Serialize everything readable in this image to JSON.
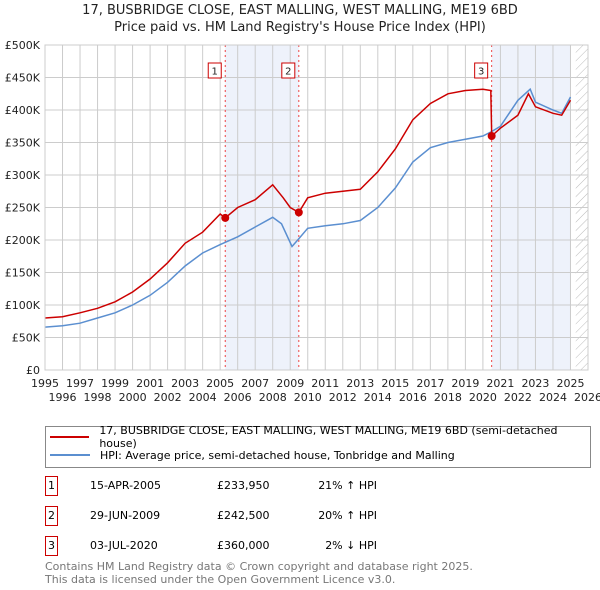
{
  "title": "17, BUSBRIDGE CLOSE, EAST MALLING, WEST MALLING, ME19 6BD",
  "subtitle": "Price paid vs. HM Land Registry's House Price Index (HPI)",
  "legend": {
    "property": "17, BUSBRIDGE CLOSE, EAST MALLING, WEST MALLING, ME19 6BD (semi-detached house)",
    "hpi": "HPI: Average price, semi-detached house, Tonbridge and Malling"
  },
  "colors": {
    "property": "#cc0000",
    "hpi": "#5b8fd0",
    "shade": "#eef2fb"
  },
  "transactions": [
    {
      "num": "1",
      "date": "15-APR-2005",
      "price": "£233,950",
      "hpi": "21% ↑ HPI"
    },
    {
      "num": "2",
      "date": "29-JUN-2009",
      "price": "£242,500",
      "hpi": "20% ↑ HPI"
    },
    {
      "num": "3",
      "date": "03-JUL-2020",
      "price": "£360,000",
      "hpi": "2% ↓ HPI"
    }
  ],
  "footer": {
    "line1": "Contains HM Land Registry data © Crown copyright and database right 2025.",
    "line2": "This data is licensed under the Open Government Licence v3.0."
  },
  "chart_data": {
    "type": "line",
    "xlim": [
      1995,
      2026
    ],
    "ylim": [
      0,
      500000
    ],
    "x_ticks": [
      "1995",
      "1996",
      "1997",
      "1998",
      "1999",
      "2000",
      "2001",
      "2002",
      "2003",
      "2004",
      "2005",
      "2006",
      "2007",
      "2008",
      "2009",
      "2010",
      "2011",
      "2012",
      "2013",
      "2014",
      "2015",
      "2016",
      "2017",
      "2018",
      "2019",
      "2020",
      "2021",
      "2022",
      "2023",
      "2024",
      "2025",
      "2026"
    ],
    "y_ticks": [
      {
        "v": 0,
        "label": "£0"
      },
      {
        "v": 50000,
        "label": "£50K"
      },
      {
        "v": 100000,
        "label": "£100K"
      },
      {
        "v": 150000,
        "label": "£150K"
      },
      {
        "v": 200000,
        "label": "£200K"
      },
      {
        "v": 250000,
        "label": "£250K"
      },
      {
        "v": 300000,
        "label": "£300K"
      },
      {
        "v": 350000,
        "label": "£350K"
      },
      {
        "v": 400000,
        "label": "£400K"
      },
      {
        "v": 450000,
        "label": "£450K"
      },
      {
        "v": 500000,
        "label": "£500K"
      }
    ],
    "shaded_ranges": [
      [
        2005.29,
        2009.49
      ],
      [
        2020.5,
        2025.0
      ]
    ],
    "hatched_from": 2025.3,
    "sales": [
      {
        "label": "1",
        "x": 2005.29,
        "y": 233950
      },
      {
        "label": "2",
        "x": 2009.49,
        "y": 242500
      },
      {
        "label": "3",
        "x": 2020.5,
        "y": 360000
      }
    ],
    "series": [
      {
        "name": "property",
        "x": [
          1995,
          1996,
          1997,
          1998,
          1999,
          2000,
          2001,
          2002,
          2003,
          2004,
          2005,
          2005.29,
          2006,
          2007,
          2008,
          2008.6,
          2009,
          2009.49,
          2010,
          2011,
          2012,
          2013,
          2014,
          2015,
          2016,
          2017,
          2018,
          2019,
          2020,
          2020.45,
          2020.5,
          2021,
          2022,
          2022.6,
          2023,
          2024,
          2024.5,
          2025
        ],
        "y": [
          80000,
          82000,
          88000,
          95000,
          105000,
          120000,
          140000,
          165000,
          195000,
          212000,
          240000,
          233950,
          250000,
          262000,
          285000,
          265000,
          250000,
          242500,
          265000,
          272000,
          275000,
          278000,
          305000,
          340000,
          385000,
          410000,
          425000,
          430000,
          432000,
          430000,
          360000,
          372000,
          392000,
          425000,
          405000,
          395000,
          392000,
          415000
        ]
      },
      {
        "name": "hpi",
        "x": [
          1995,
          1996,
          1997,
          1998,
          1999,
          2000,
          2001,
          2002,
          2003,
          2004,
          2005,
          2006,
          2007,
          2008,
          2008.5,
          2009.1,
          2009.49,
          2010,
          2011,
          2012,
          2013,
          2014,
          2015,
          2016,
          2017,
          2018,
          2019,
          2020,
          2020.5,
          2021,
          2022,
          2022.7,
          2023,
          2024,
          2024.5,
          2025
        ],
        "y": [
          66000,
          68000,
          72000,
          80000,
          88000,
          100000,
          115000,
          135000,
          160000,
          180000,
          193000,
          205000,
          220000,
          235000,
          225000,
          190000,
          202000,
          218000,
          222000,
          225000,
          230000,
          250000,
          280000,
          320000,
          342000,
          350000,
          355000,
          360000,
          367000,
          375000,
          415000,
          432000,
          412000,
          400000,
          395000,
          420000
        ]
      }
    ]
  }
}
